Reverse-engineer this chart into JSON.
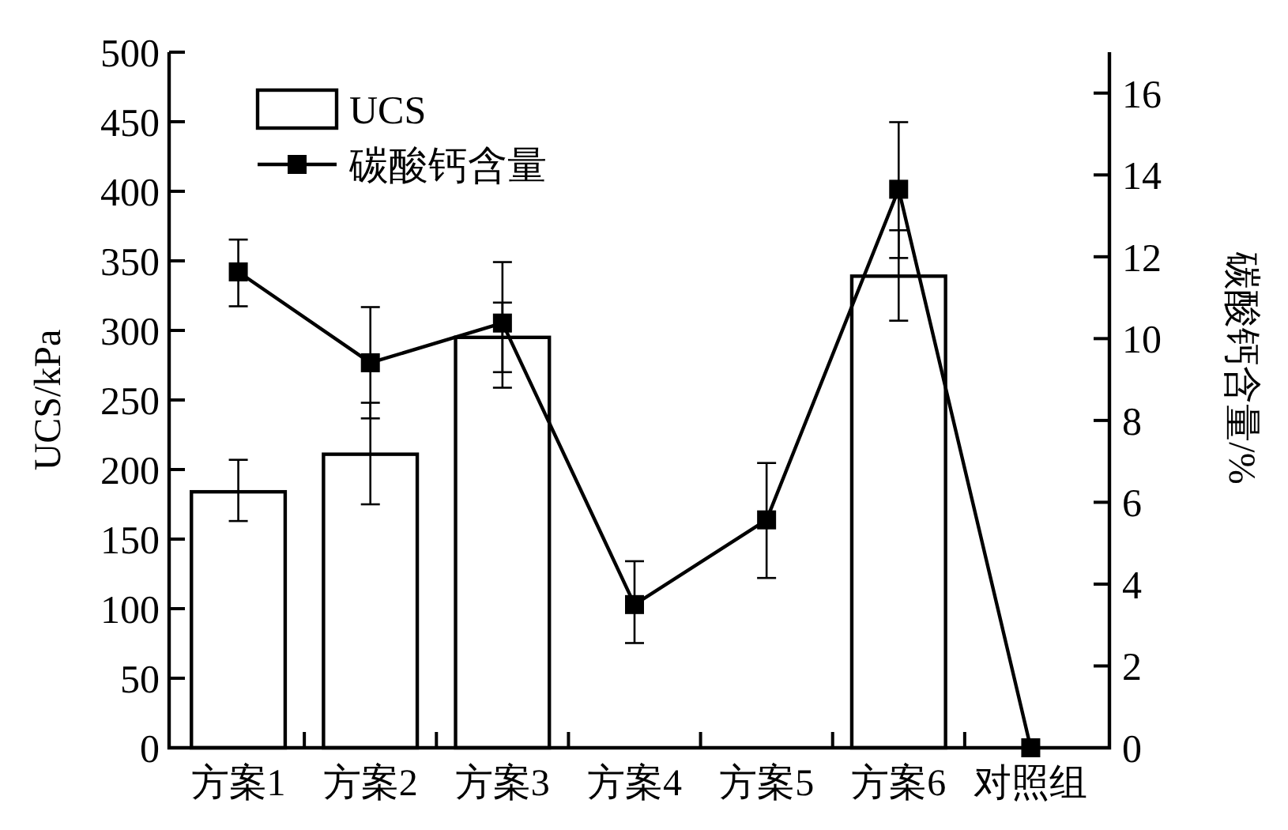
{
  "chart_data": {
    "type": "bar",
    "categories": [
      "方案1",
      "方案2",
      "方案3",
      "方案4",
      "方案5",
      "方案6",
      "对照组"
    ],
    "series": [
      {
        "name": "UCS",
        "color": "#ffffff",
        "values": [
          184,
          211,
          295,
          null,
          null,
          339,
          null
        ],
        "errors": [
          [
            163,
            207
          ],
          [
            175,
            248
          ],
          [
            270,
            320
          ],
          null,
          null,
          [
            307,
            372
          ],
          null
        ]
      },
      {
        "name": "碳酸钙含量",
        "type": "line",
        "axis": "y2",
        "color": "#000000",
        "values": [
          11.63,
          9.41,
          10.38,
          3.5,
          5.57,
          13.65,
          0
        ],
        "errors": [
          [
            10.79,
            12.42
          ],
          [
            8.05,
            10.77
          ],
          [
            8.8,
            11.87
          ],
          [
            2.56,
            4.56
          ],
          [
            4.15,
            6.96
          ],
          [
            11.97,
            15.29
          ],
          null
        ]
      }
    ],
    "ylabel": "UCS/kPa",
    "y2label": "碳酸钙含量/%",
    "ylim": [
      0,
      500
    ],
    "yticks": [
      0,
      50,
      100,
      150,
      200,
      250,
      300,
      350,
      400,
      450,
      500
    ],
    "y2lim": [
      0,
      17
    ],
    "y2ticks": [
      0,
      2,
      4,
      6,
      8,
      10,
      12,
      14,
      16
    ],
    "marker": "square",
    "line_style": "solid",
    "legend": "top left",
    "grid": false
  }
}
